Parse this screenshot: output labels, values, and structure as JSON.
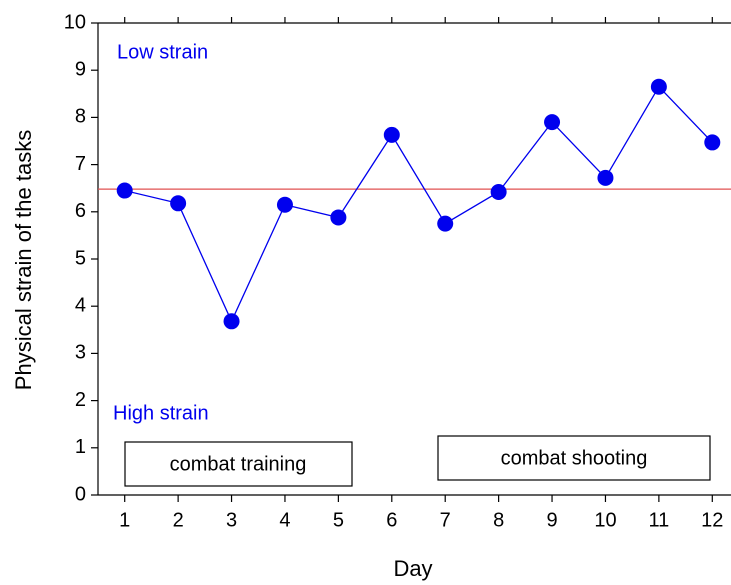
{
  "chart_data": {
    "type": "line",
    "xlabel": "Day",
    "ylabel": "Physical strain of the tasks",
    "x": [
      1,
      2,
      3,
      4,
      5,
      6,
      7,
      8,
      9,
      10,
      11,
      12
    ],
    "series": [
      {
        "color": "#0000ee",
        "values": [
          6.45,
          6.18,
          3.68,
          6.15,
          5.88,
          7.63,
          5.75,
          6.42,
          7.9,
          6.72,
          8.65,
          7.47
        ]
      }
    ],
    "reference_line": {
      "value": 6.48,
      "color": "#e05050"
    },
    "xlim": [
      0.5,
      12.5
    ],
    "xticks": [
      1,
      2,
      3,
      4,
      5,
      6,
      7,
      8,
      9,
      10,
      11,
      12
    ],
    "ylim": [
      0,
      10
    ],
    "yticks": [
      0,
      1,
      2,
      3,
      4,
      5,
      6,
      7,
      8,
      9,
      10
    ],
    "annotations": [
      "Low strain",
      "High strain",
      "combat training",
      "combat shooting"
    ]
  }
}
